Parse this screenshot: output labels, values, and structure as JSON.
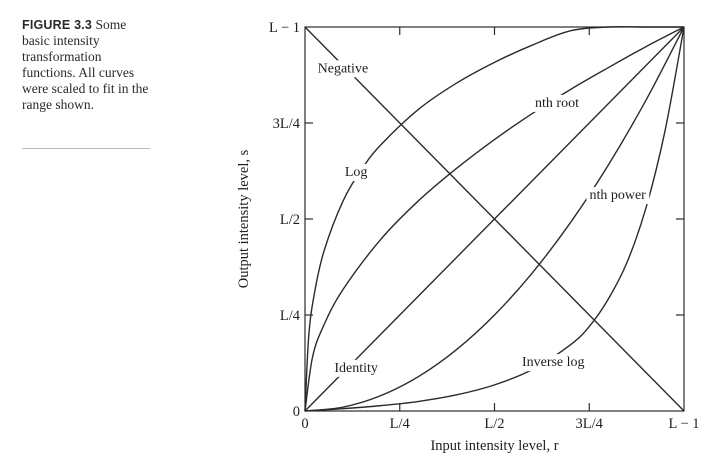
{
  "figure": {
    "caption_label": "FIGURE 3.3",
    "caption_text": " Some basic intensity transformation functions. All curves were scaled to fit in the range shown."
  },
  "chart_data": {
    "type": "line",
    "xlabel": "Input intensity level, r",
    "ylabel": "Output intensity level, s",
    "xlim": [
      0,
      1
    ],
    "ylim": [
      0,
      1
    ],
    "x_ticks": [
      {
        "value": 0,
        "label": "0"
      },
      {
        "value": 0.25,
        "label": "L/4"
      },
      {
        "value": 0.5,
        "label": "L/2"
      },
      {
        "value": 0.75,
        "label": "3L/4"
      },
      {
        "value": 1,
        "label": "L − 1"
      }
    ],
    "y_ticks": [
      {
        "value": 0,
        "label": "0"
      },
      {
        "value": 0.25,
        "label": "L/4"
      },
      {
        "value": 0.5,
        "label": "L/2"
      },
      {
        "value": 0.75,
        "label": "3L/4"
      },
      {
        "value": 1,
        "label": "L − 1"
      }
    ],
    "grid": false,
    "line_color": "#2b2b2b",
    "series": [
      {
        "name": "Negative",
        "x": [
          0,
          1
        ],
        "y": [
          1,
          0
        ],
        "label_at": [
          0.1,
          0.895
        ]
      },
      {
        "name": "Identity",
        "x": [
          0,
          1
        ],
        "y": [
          0,
          1
        ],
        "label_at": [
          0.135,
          0.115
        ]
      },
      {
        "name": "Log",
        "x": [
          0,
          0.01,
          0.025,
          0.05,
          0.1,
          0.15,
          0.2,
          0.3,
          0.4,
          0.5,
          0.6,
          0.7,
          0.8,
          0.9,
          1
        ],
        "y": [
          0,
          0.197,
          0.307,
          0.416,
          0.546,
          0.63,
          0.693,
          0.786,
          0.854,
          0.908,
          0.953,
          0.99,
          1.0,
          1.0,
          1
        ],
        "label_at": [
          0.135,
          0.625
        ]
      },
      {
        "name": "nth root",
        "x": [
          0,
          0.02,
          0.05,
          0.1,
          0.2,
          0.3,
          0.4,
          0.5,
          0.6,
          0.7,
          0.8,
          0.9,
          1
        ],
        "y": [
          0,
          0.141,
          0.224,
          0.316,
          0.447,
          0.548,
          0.632,
          0.707,
          0.775,
          0.837,
          0.894,
          0.949,
          1
        ],
        "label_at": [
          0.665,
          0.805
        ]
      },
      {
        "name": "nth power",
        "x": [
          0,
          0.1,
          0.2,
          0.3,
          0.4,
          0.5,
          0.6,
          0.7,
          0.8,
          0.9,
          1
        ],
        "y": [
          0,
          0.01,
          0.04,
          0.09,
          0.16,
          0.25,
          0.36,
          0.49,
          0.64,
          0.81,
          1
        ],
        "label_at": [
          0.825,
          0.565
        ]
      },
      {
        "name": "Inverse log",
        "x": [
          0,
          0.1,
          0.2,
          0.3,
          0.4,
          0.5,
          0.6,
          0.7,
          0.75,
          0.8,
          0.85,
          0.9,
          0.95,
          1
        ],
        "y": [
          0,
          0.006,
          0.014,
          0.025,
          0.042,
          0.068,
          0.108,
          0.172,
          0.22,
          0.291,
          0.388,
          0.53,
          0.73,
          1
        ],
        "label_at": [
          0.655,
          0.13
        ]
      }
    ]
  }
}
